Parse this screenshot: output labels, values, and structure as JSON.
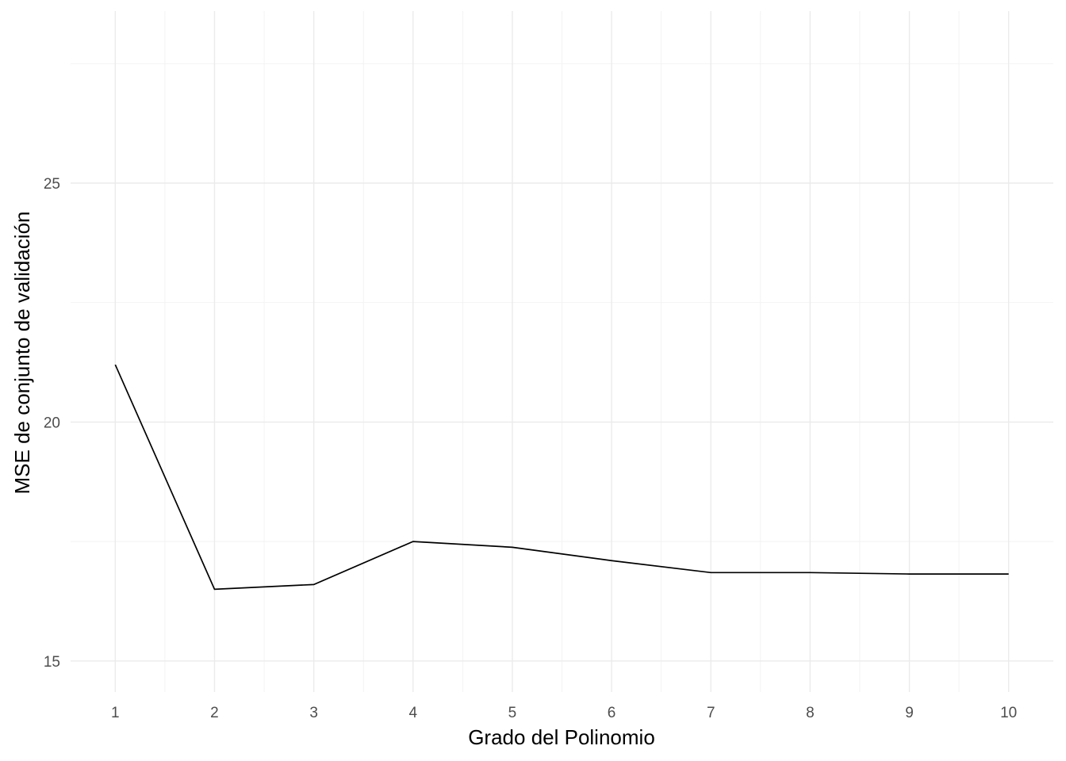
{
  "chart_data": {
    "type": "line",
    "xlabel": "Grado del Polinomio",
    "ylabel": "MSE de conjunto de validación",
    "x": [
      1,
      2,
      3,
      4,
      5,
      6,
      7,
      8,
      9,
      10
    ],
    "xticks": [
      "1",
      "2",
      "3",
      "4",
      "5",
      "6",
      "7",
      "8",
      "9",
      "10"
    ],
    "xlim": [
      0.55,
      10.45
    ],
    "y_minor_ticks": [
      17.5,
      22.5,
      27.5
    ],
    "yticks": [
      15,
      20,
      25
    ],
    "ytick_labels": [
      "15",
      "20",
      "25"
    ],
    "ylim": [
      14.35,
      28.6
    ],
    "series": [
      {
        "values": [
          21.2,
          16.5,
          16.6,
          17.5,
          17.38,
          17.1,
          16.85,
          16.85,
          16.82,
          16.82
        ]
      }
    ],
    "grid": true,
    "legend": "none",
    "line_color": "#000000"
  }
}
